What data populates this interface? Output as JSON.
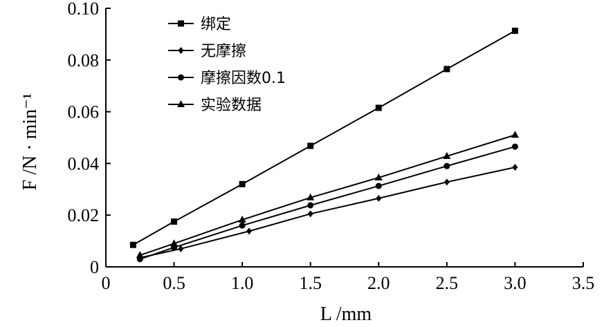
{
  "chart_data": {
    "type": "line",
    "xlabel": "L /mm",
    "ylabel": "F /N · min⁻¹",
    "xlim": [
      0,
      3.5
    ],
    "ylim": [
      0,
      0.1
    ],
    "xticks": [
      "0",
      "0.5",
      "1.0",
      "1.5",
      "2.0",
      "2.5",
      "3.0",
      "3.5"
    ],
    "yticks": [
      "0",
      "0.02",
      "0.04",
      "0.06",
      "0.08",
      "0.10"
    ],
    "grid": false,
    "legend_position": "top-left",
    "series": [
      {
        "name": "绑定",
        "marker": "square",
        "x": [
          0.2,
          0.5,
          1.0,
          1.5,
          2.0,
          2.5,
          3.0
        ],
        "y": [
          0.0085,
          0.0175,
          0.032,
          0.0468,
          0.0615,
          0.0765,
          0.0913
        ]
      },
      {
        "name": "无摩擦",
        "marker": "diamond",
        "x": [
          0.25,
          0.55,
          1.05,
          1.5,
          2.0,
          2.5,
          3.0
        ],
        "y": [
          0.0035,
          0.007,
          0.0138,
          0.0205,
          0.0265,
          0.0328,
          0.0385
        ]
      },
      {
        "name": "摩擦因数0.1",
        "marker": "circle",
        "x": [
          0.25,
          0.5,
          1.0,
          1.5,
          2.0,
          2.5,
          3.0
        ],
        "y": [
          0.003,
          0.0075,
          0.016,
          0.0238,
          0.0313,
          0.039,
          0.0465
        ]
      },
      {
        "name": "实验数据",
        "marker": "triangle",
        "x": [
          0.25,
          0.5,
          1.0,
          1.5,
          2.0,
          2.5,
          3.0
        ],
        "y": [
          0.0045,
          0.009,
          0.0182,
          0.0268,
          0.0345,
          0.0428,
          0.051
        ]
      }
    ]
  }
}
